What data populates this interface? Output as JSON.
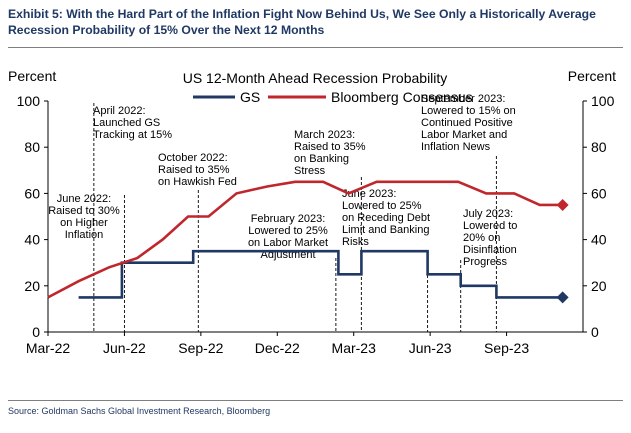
{
  "exhibit_title": "Exhibit 5: With the Hard Part of the Inflation Fight Now Behind Us, We See Only a Historically Average Recession Probability of 15% Over the Next 12 Months",
  "source": "Source: Goldman Sachs Global Investment Research, Bloomberg",
  "chart_data": {
    "type": "line",
    "title": "US 12-Month Ahead Recession Probability",
    "ylabel_left": "Percent",
    "ylabel_right": "Percent",
    "ylim": [
      0,
      100
    ],
    "yticks": [
      0,
      20,
      40,
      60,
      80,
      100
    ],
    "xlim": [
      0,
      21
    ],
    "xticks": [
      {
        "x": 0,
        "label": "Mar-22"
      },
      {
        "x": 3,
        "label": "Jun-22"
      },
      {
        "x": 6,
        "label": "Sep-22"
      },
      {
        "x": 9,
        "label": "Dec-22"
      },
      {
        "x": 12,
        "label": "Mar-23"
      },
      {
        "x": 15,
        "label": "Jun-23"
      },
      {
        "x": 18,
        "label": "Sep-23"
      }
    ],
    "grid": false,
    "legend_position": "top-center",
    "series": [
      {
        "name": "GS",
        "color": "#1f3864",
        "end_marker": "diamond",
        "points": [
          [
            1.2,
            15
          ],
          [
            2.9,
            15
          ],
          [
            2.9,
            30
          ],
          [
            5.7,
            30
          ],
          [
            5.7,
            35
          ],
          [
            11.4,
            35
          ],
          [
            11.4,
            25
          ],
          [
            12.3,
            25
          ],
          [
            12.3,
            35
          ],
          [
            14.9,
            35
          ],
          [
            14.9,
            25
          ],
          [
            16.2,
            25
          ],
          [
            16.2,
            20
          ],
          [
            17.6,
            20
          ],
          [
            17.6,
            15
          ],
          [
            20.2,
            15
          ]
        ]
      },
      {
        "name": "Bloomberg Consensus",
        "color": "#c0272d",
        "end_marker": "diamond",
        "points": [
          [
            0,
            15
          ],
          [
            1.2,
            22
          ],
          [
            2.4,
            28
          ],
          [
            3.5,
            32
          ],
          [
            4.5,
            40
          ],
          [
            5.5,
            50
          ],
          [
            6.3,
            50
          ],
          [
            7.4,
            60
          ],
          [
            8.6,
            63
          ],
          [
            9.7,
            65
          ],
          [
            10.8,
            65
          ],
          [
            11.8,
            60
          ],
          [
            12.9,
            65
          ],
          [
            13.9,
            65
          ],
          [
            15.0,
            65
          ],
          [
            16.1,
            65
          ],
          [
            17.2,
            60
          ],
          [
            18.3,
            60
          ],
          [
            19.3,
            55
          ],
          [
            20.2,
            55
          ]
        ]
      }
    ],
    "annotations": [
      {
        "text": [
          "April 2022:",
          "Launched GS",
          "Tracking at 15%"
        ],
        "x": 1.8
      },
      {
        "text": [
          "June 2022:",
          "Raised to 30%",
          "on Higher",
          "Inflation"
        ],
        "x": 3.0
      },
      {
        "text": [
          "October 2022:",
          "Raised to 35%",
          "on Hawkish Fed"
        ],
        "x": 5.9
      },
      {
        "text": [
          "February 2023:",
          "Lowered to 25%",
          "on Labor Market",
          "Adjustment"
        ],
        "x": 11.3
      },
      {
        "text": [
          "March 2023:",
          "Raised to 35%",
          "on Banking",
          "Stress"
        ],
        "x": 12.3
      },
      {
        "text": [
          "June 2023:",
          "Lowered to 25%",
          "on Receding Debt",
          "Limit and Banking",
          "Risks"
        ],
        "x": 14.9
      },
      {
        "text": [
          "July 2023:",
          "Lowered to",
          "20% on",
          "Disinflation",
          "Progress"
        ],
        "x": 16.2
      },
      {
        "text": [
          "September 2023:",
          "Lowered to 15% on",
          "Continued Positive",
          "Labor Market and",
          "Inflation News"
        ],
        "x": 17.6
      }
    ]
  }
}
